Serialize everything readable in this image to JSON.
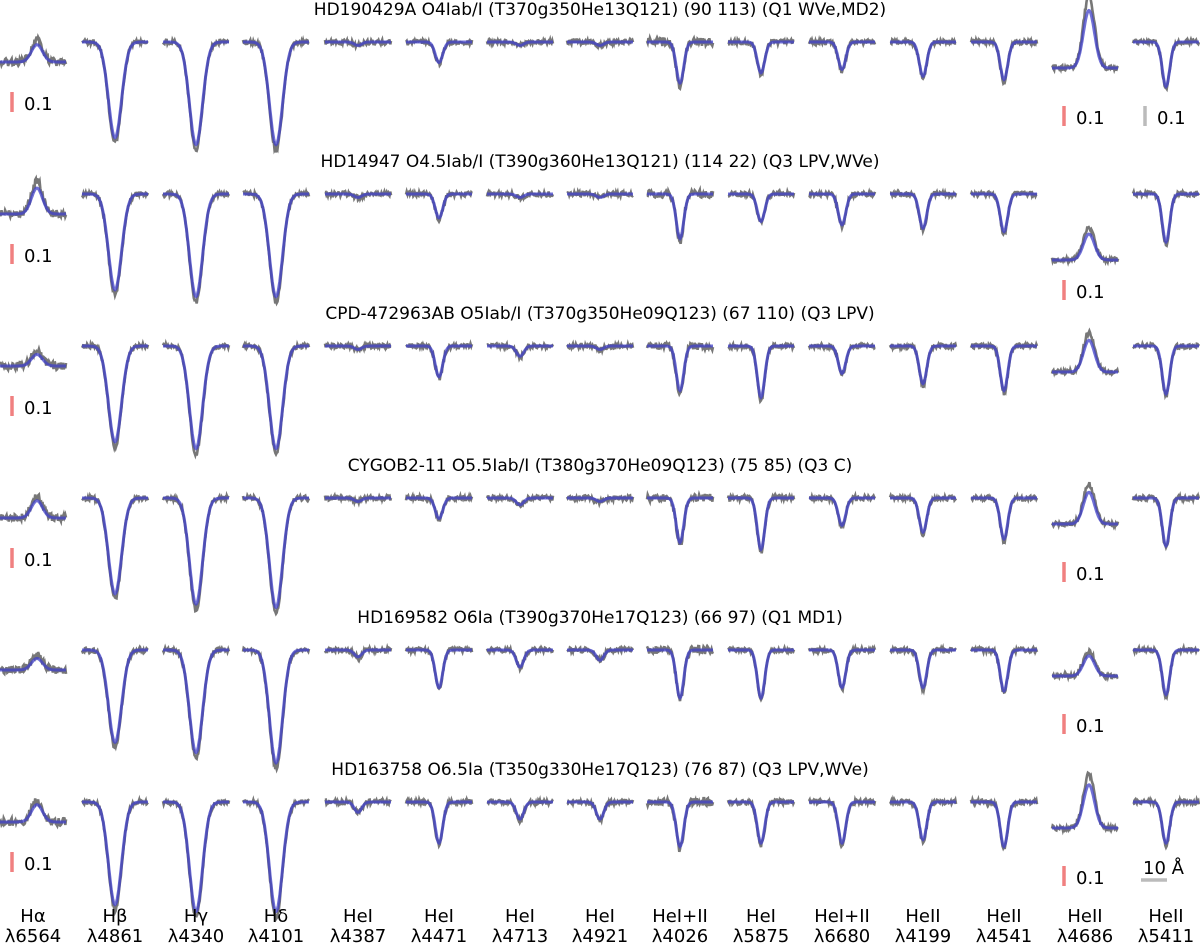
{
  "chart_data": {
    "type": "line",
    "description_units": {
      "line_depth": "normalized flux",
      "scale_bar_wavelength": "Angstrom"
    },
    "columns": [
      {
        "ion": "Hα",
        "wavelength": "λ6564",
        "profile": "emission"
      },
      {
        "ion": "Hβ",
        "wavelength": "λ4861",
        "profile": "absorption"
      },
      {
        "ion": "Hγ",
        "wavelength": "λ4340",
        "profile": "absorption"
      },
      {
        "ion": "Hδ",
        "wavelength": "λ4101",
        "profile": "absorption"
      },
      {
        "ion": "HeI",
        "wavelength": "λ4387",
        "profile": "absorption"
      },
      {
        "ion": "HeI",
        "wavelength": "λ4471",
        "profile": "absorption"
      },
      {
        "ion": "HeI",
        "wavelength": "λ4713",
        "profile": "absorption"
      },
      {
        "ion": "HeI",
        "wavelength": "λ4921",
        "profile": "absorption"
      },
      {
        "ion": "HeI+II",
        "wavelength": "λ4026",
        "profile": "absorption"
      },
      {
        "ion": "HeI",
        "wavelength": "λ5875",
        "profile": "absorption"
      },
      {
        "ion": "HeI+II",
        "wavelength": "λ6680",
        "profile": "absorption"
      },
      {
        "ion": "HeII",
        "wavelength": "λ4199",
        "profile": "absorption"
      },
      {
        "ion": "HeII",
        "wavelength": "λ4541",
        "profile": "absorption"
      },
      {
        "ion": "HeII",
        "wavelength": "λ4686",
        "profile": "emission"
      },
      {
        "ion": "HeII",
        "wavelength": "λ5411",
        "profile": "absorption"
      }
    ],
    "rows": [
      {
        "title": "HD190429A O4Iab/I (T370g350He13Q121) (90 113) (Q1 WVe,MD2)",
        "depths": [
          0.06,
          0.28,
          0.3,
          0.3,
          0.01,
          0.06,
          0.01,
          0.01,
          0.12,
          0.09,
          0.08,
          0.1,
          0.11,
          0.2,
          0.13
        ],
        "scale_bars": [
          {
            "column": 0,
            "value": 0.1,
            "label": "0.1",
            "color": "#f08080"
          },
          {
            "column": 13,
            "value": 0.1,
            "label": "0.1",
            "color": "#f08080"
          },
          {
            "column": 14,
            "value": 0.1,
            "label": "0.1",
            "color": "#bbbbbb"
          }
        ]
      },
      {
        "title": "HD14947 O4.5Iab/I (T390g360He13Q121) (114 22) (Q3 LPV,WVe)",
        "depths": [
          0.09,
          0.28,
          0.3,
          0.3,
          0.01,
          0.07,
          0.01,
          0.01,
          0.13,
          0.08,
          0.09,
          0.1,
          0.11,
          0.09,
          0.14
        ],
        "scale_bars": [
          {
            "column": 0,
            "value": 0.1,
            "label": "0.1",
            "color": "#f08080"
          },
          {
            "column": 13,
            "value": 0.1,
            "label": "0.1",
            "color": "#f08080"
          }
        ]
      },
      {
        "title": "CPD-472963AB O5Iab/I (T370g350He09Q123) (67 110) (Q3 LPV)",
        "depths": [
          0.04,
          0.28,
          0.3,
          0.3,
          0.01,
          0.09,
          0.03,
          0.01,
          0.13,
          0.15,
          0.08,
          0.11,
          0.13,
          0.11,
          0.14
        ],
        "scale_bars": [
          {
            "column": 0,
            "value": 0.1,
            "label": "0.1",
            "color": "#f08080"
          }
        ]
      },
      {
        "title": "CYGOB2-11 O5.5Iab/I (T380g370He09Q123) (75 85) (Q3 C)",
        "depths": [
          0.06,
          0.28,
          0.31,
          0.32,
          0.01,
          0.06,
          0.02,
          0.01,
          0.13,
          0.15,
          0.08,
          0.1,
          0.12,
          0.11,
          0.14
        ],
        "scale_bars": [
          {
            "column": 0,
            "value": 0.1,
            "label": "0.1",
            "color": "#f08080"
          },
          {
            "column": 13,
            "value": 0.1,
            "label": "0.1",
            "color": "#f08080"
          }
        ]
      },
      {
        "title": "HD169582 O6Ia (T390g370He17Q123) (66 97) (Q1 MD1)",
        "depths": [
          0.04,
          0.27,
          0.3,
          0.33,
          0.02,
          0.11,
          0.05,
          0.03,
          0.14,
          0.14,
          0.11,
          0.11,
          0.12,
          0.07,
          0.13
        ],
        "scale_bars": [
          {
            "column": 13,
            "value": 0.1,
            "label": "0.1",
            "color": "#f08080"
          }
        ]
      },
      {
        "title": "HD163758 O6.5Ia (T350g330He17Q123) (76 87) (Q3 LPV,WVe)",
        "depths": [
          0.06,
          0.3,
          0.32,
          0.32,
          0.03,
          0.12,
          0.05,
          0.05,
          0.13,
          0.12,
          0.12,
          0.11,
          0.13,
          0.15,
          0.12
        ],
        "scale_bars": [
          {
            "column": 0,
            "value": 0.1,
            "label": "0.1",
            "color": "#f08080"
          },
          {
            "column": 13,
            "value": 0.1,
            "label": "0.1",
            "color": "#f08080"
          }
        ],
        "wavelength_scale": {
          "column": 14,
          "value": 10,
          "label": "10 Å",
          "color": "#bbbbbb"
        }
      }
    ],
    "series": [
      {
        "role": "observed",
        "color": "#777777"
      },
      {
        "role": "model",
        "color": "#4040c8"
      }
    ],
    "grid": false
  }
}
